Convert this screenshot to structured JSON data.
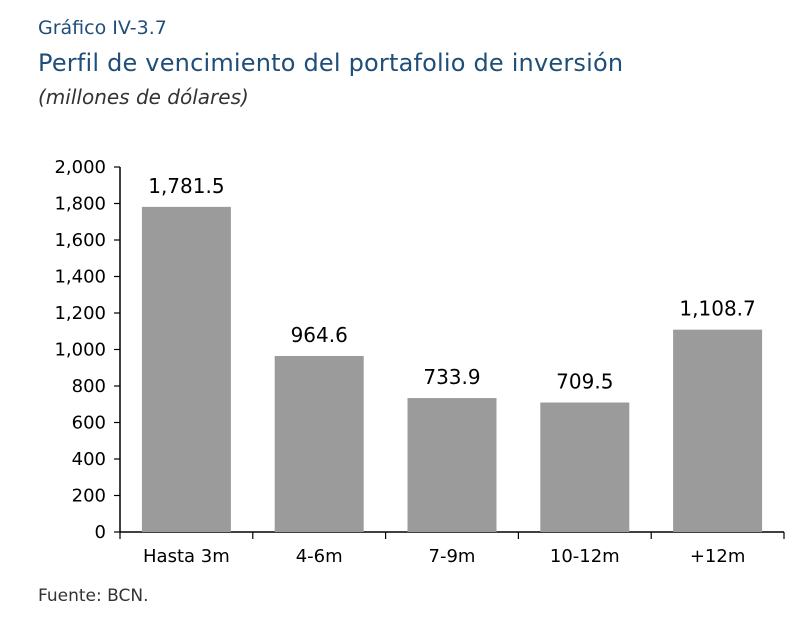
{
  "header": {
    "label": "Gráfico IV-3.7",
    "title": "Perfil de vencimiento del portafolio de inversión",
    "subtitle": "(millones de dólares)"
  },
  "footer": {
    "source": "Fuente: BCN."
  },
  "colors": {
    "bar": "#9b9b9b",
    "axis": "#000000",
    "title": "#1f4e79"
  },
  "chart_data": {
    "type": "bar",
    "categories": [
      "Hasta 3m",
      "4-6m",
      "7-9m",
      "10-12m",
      "+12m"
    ],
    "values": [
      1781.5,
      964.6,
      733.9,
      709.5,
      1108.7
    ],
    "data_labels": [
      "1,781.5",
      "964.6",
      "733.9",
      "709.5",
      "1,108.7"
    ],
    "ylim": [
      0,
      2000
    ],
    "yticks": [
      0,
      200,
      400,
      600,
      800,
      1000,
      1200,
      1400,
      1600,
      1800,
      2000
    ],
    "ytick_labels": [
      "0",
      "200",
      "400",
      "600",
      "800",
      "1,000",
      "1,200",
      "1,400",
      "1,600",
      "1,800",
      "2,000"
    ],
    "grid": false,
    "legend": "none"
  }
}
